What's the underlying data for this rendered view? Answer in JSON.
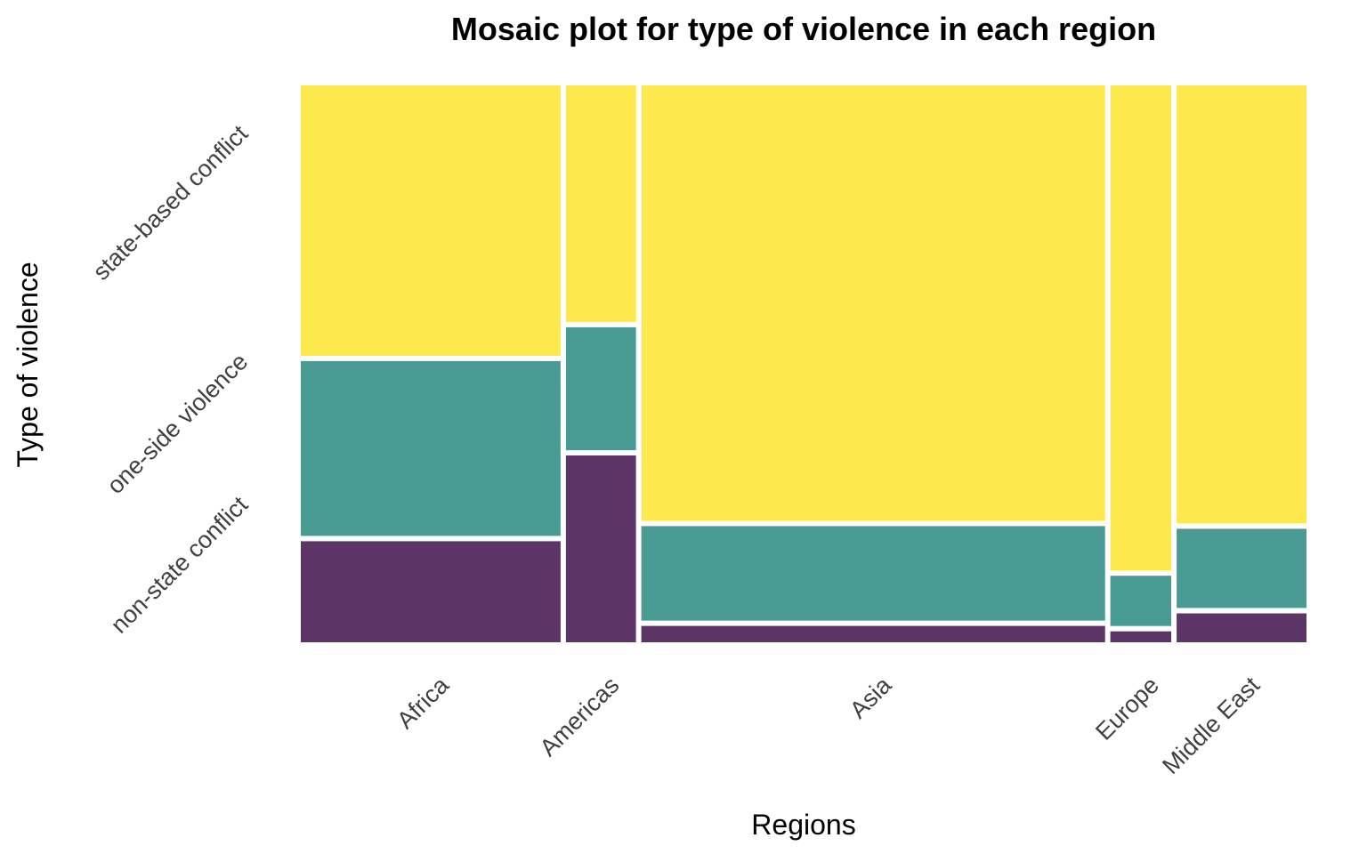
{
  "chart_data": {
    "type": "mosaic",
    "title": "Mosaic plot for type of violence in each region",
    "xlabel": "Regions",
    "ylabel": "Type of violence",
    "categories": [
      "Africa",
      "Americas",
      "Asia",
      "Europe",
      "Middle East"
    ],
    "region_share": [
      0.256,
      0.069,
      0.457,
      0.06,
      0.128
    ],
    "series": [
      {
        "name": "non-state conflict",
        "color": "#5C3566",
        "values": [
          0.185,
          0.342,
          0.03,
          0.02,
          0.053
        ]
      },
      {
        "name": "one-side violence",
        "color": "#4A9A94",
        "values": [
          0.32,
          0.225,
          0.173,
          0.092,
          0.145
        ]
      },
      {
        "name": "state-based conflict",
        "color": "#FDE84D",
        "values": [
          0.495,
          0.433,
          0.797,
          0.888,
          0.802
        ]
      }
    ],
    "ylim": [
      0,
      1
    ],
    "grid": false,
    "legend": "none"
  }
}
